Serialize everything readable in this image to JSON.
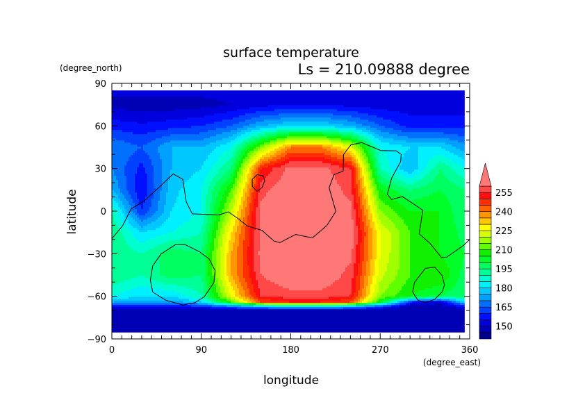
{
  "chart_data": {
    "type": "heatmap",
    "title": "surface temperature",
    "subtitle": "Ls = 210.09888 degree",
    "xlabel": "longitude",
    "ylabel": "latitude",
    "xunit": "(degree_east)",
    "yunit": "(degree_north)",
    "xlim": [
      0,
      360
    ],
    "ylim": [
      -90,
      90
    ],
    "xticks": [
      "0",
      "90",
      "180",
      "270",
      "360"
    ],
    "xtick_values": [
      0,
      90,
      180,
      270,
      360
    ],
    "yticks": [
      "90",
      "60",
      "30",
      "0",
      "−30",
      "−60",
      "−90"
    ],
    "ytick_values": [
      90,
      60,
      30,
      0,
      -30,
      -60,
      -90
    ],
    "colorbar": {
      "levels": [
        140,
        145,
        150,
        155,
        160,
        165,
        170,
        175,
        180,
        185,
        190,
        195,
        200,
        205,
        210,
        215,
        220,
        225,
        230,
        235,
        240,
        245,
        250,
        255,
        260
      ],
      "colors": [
        "#00008c",
        "#0000b4",
        "#0000dc",
        "#0010ff",
        "#0040ff",
        "#0070ff",
        "#00a0ff",
        "#00c8ff",
        "#00f0ff",
        "#00ffd0",
        "#00ff96",
        "#00ff60",
        "#00ff28",
        "#10f000",
        "#60ff00",
        "#a0ff00",
        "#d8ff00",
        "#ffff00",
        "#ffc800",
        "#ff9600",
        "#ff6400",
        "#ff3000",
        "#ff1010",
        "#ff4848"
      ],
      "over_color": "#ff7878",
      "labels": [
        "255",
        "240",
        "225",
        "210",
        "195",
        "180",
        "165",
        "150"
      ],
      "label_values": [
        255,
        240,
        225,
        210,
        195,
        180,
        165,
        150
      ]
    },
    "grid": {
      "lon": [
        0,
        30,
        60,
        90,
        120,
        150,
        180,
        210,
        240,
        270,
        300,
        330,
        355
      ],
      "lat": [
        85,
        75,
        60,
        45,
        30,
        15,
        0,
        -15,
        -30,
        -45,
        -60,
        -64,
        -67,
        -70,
        -85
      ],
      "values": [
        [
          152,
          152,
          152,
          152,
          152,
          152,
          152,
          152,
          152,
          152,
          152,
          152,
          152
        ],
        [
          148,
          147,
          147,
          148,
          150,
          153,
          155,
          155,
          153,
          152,
          152,
          152,
          152
        ],
        [
          158,
          156,
          158,
          160,
          165,
          175,
          180,
          180,
          175,
          165,
          158,
          158,
          158
        ],
        [
          170,
          165,
          175,
          175,
          185,
          215,
          240,
          240,
          225,
          185,
          180,
          180,
          172
        ],
        [
          170,
          158,
          175,
          180,
          195,
          250,
          262,
          262,
          255,
          190,
          175,
          195,
          185
        ],
        [
          175,
          155,
          178,
          185,
          210,
          258,
          265,
          265,
          258,
          205,
          195,
          200,
          195
        ],
        [
          190,
          160,
          180,
          185,
          220,
          262,
          265,
          265,
          262,
          215,
          205,
          205,
          195
        ],
        [
          195,
          180,
          185,
          190,
          230,
          262,
          265,
          265,
          265,
          225,
          210,
          205,
          198
        ],
        [
          195,
          190,
          198,
          195,
          235,
          262,
          265,
          265,
          262,
          225,
          210,
          205,
          200
        ],
        [
          195,
          190,
          198,
          195,
          235,
          260,
          265,
          265,
          258,
          222,
          210,
          210,
          198
        ],
        [
          185,
          180,
          180,
          190,
          225,
          255,
          258,
          258,
          255,
          215,
          205,
          200,
          195
        ],
        [
          175,
          172,
          172,
          180,
          210,
          245,
          250,
          250,
          245,
          205,
          160,
          150,
          180
        ],
        [
          158,
          158,
          158,
          160,
          170,
          180,
          185,
          185,
          180,
          165,
          148,
          148,
          158
        ],
        [
          145,
          145,
          145,
          145,
          145,
          145,
          145,
          145,
          145,
          145,
          145,
          145,
          145
        ],
        [
          145,
          145,
          145,
          145,
          145,
          145,
          145,
          145,
          145,
          145,
          145,
          145,
          145
        ]
      ]
    },
    "contour_lines": [
      [
        [
          0,
          -19.4
        ],
        [
          10.9,
          -10.2
        ],
        [
          19.3,
          1.5
        ],
        [
          32.6,
          7.3
        ],
        [
          47.1,
          16.5
        ],
        [
          61.6,
          26.2
        ],
        [
          71.3,
          22.4
        ],
        [
          74.9,
          6.5
        ],
        [
          80.9,
          -1.9
        ],
        [
          107.5,
          -2.7
        ],
        [
          117.2,
          -0.5
        ],
        [
          126.8,
          -5.2
        ],
        [
          136.5,
          -10.5
        ],
        [
          151,
          -13.5
        ],
        [
          163.1,
          -21.1
        ],
        [
          169.1,
          -22.2
        ],
        [
          184.8,
          -16.4
        ],
        [
          201.7,
          -18.9
        ],
        [
          216.2,
          -10.2
        ],
        [
          225.4,
          -0.2
        ],
        [
          218.6,
          16.5
        ],
        [
          223.5,
          25.7
        ],
        [
          232.7,
          28.2
        ],
        [
          233.1,
          39.9
        ],
        [
          240.4,
          46.6
        ],
        [
          251.3,
          48.3
        ],
        [
          270.6,
          42.7
        ],
        [
          286.3,
          42.4
        ],
        [
          291.1,
          39.9
        ],
        [
          290.6,
          34.9
        ],
        [
          281.5,
          23.2
        ],
        [
          277.1,
          11.8
        ],
        [
          281.5,
          8.2
        ],
        [
          292.3,
          10.2
        ],
        [
          312.9,
          0.7
        ],
        [
          309.2,
          -16
        ],
        [
          320.1,
          -22.7
        ],
        [
          331.7,
          -32.7
        ],
        [
          337,
          -32.4
        ],
        [
          353.9,
          -24.1
        ],
        [
          360,
          -20
        ]
      ],
      [
        [
          141.3,
          22.4
        ],
        [
          146.2,
          25.7
        ],
        [
          152.2,
          24.9
        ],
        [
          153.9,
          21.5
        ],
        [
          151,
          16.5
        ],
        [
          146.2,
          14
        ],
        [
          141.3,
          17.4
        ],
        [
          141.3,
          22.4
        ]
      ],
      [
        [
          49.5,
          -30.2
        ],
        [
          64,
          -23.6
        ],
        [
          73.7,
          -23.6
        ],
        [
          88.2,
          -28.6
        ],
        [
          97.8,
          -33.6
        ],
        [
          103.9,
          -41.9
        ],
        [
          102.7,
          -50.3
        ],
        [
          93,
          -60.3
        ],
        [
          83.4,
          -64.5
        ],
        [
          71.3,
          -66.1
        ],
        [
          54.4,
          -62.8
        ],
        [
          41.1,
          -57
        ],
        [
          38.7,
          -48.6
        ],
        [
          41.1,
          -38.6
        ],
        [
          49.5,
          -30.2
        ]
      ],
      [
        [
          315.3,
          -40.3
        ],
        [
          325,
          -39.4
        ],
        [
          332.2,
          -45.3
        ],
        [
          334.7,
          -52
        ],
        [
          332.2,
          -57
        ],
        [
          325,
          -62
        ],
        [
          315.3,
          -64.5
        ],
        [
          308,
          -62.8
        ],
        [
          302.7,
          -57
        ],
        [
          304.4,
          -50.3
        ],
        [
          315.3,
          -40.3
        ]
      ]
    ]
  }
}
